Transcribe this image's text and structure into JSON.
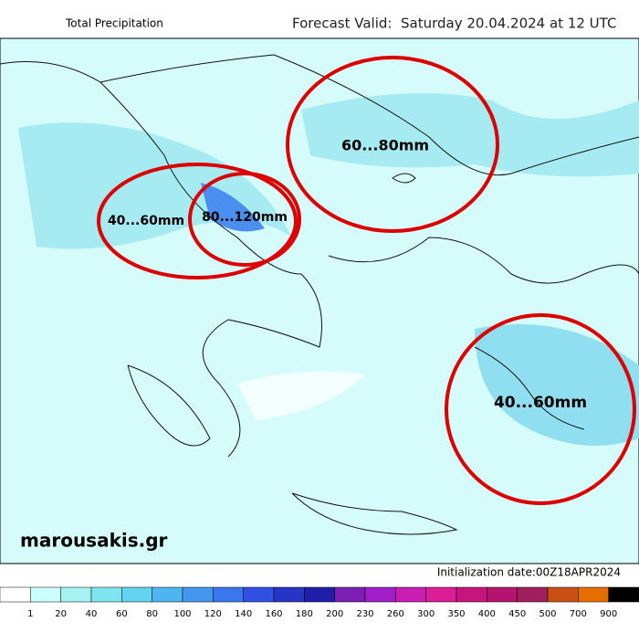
{
  "header": {
    "title": "Total Precipitation",
    "valid": "Forecast Valid:  Saturday 20.04.2024 at 12 UTC"
  },
  "annotations": [
    {
      "text": "60...80mm"
    },
    {
      "text": "40...60mm"
    },
    {
      "text": "80...120mm"
    },
    {
      "text": "40...60mm"
    }
  ],
  "watermark": "marousakis.gr",
  "init": "Initialization date:00Z18APR2024",
  "legend": {
    "colors": [
      "#ffffff",
      "#ccffff",
      "#a6f2f2",
      "#7fe5f0",
      "#62d3f0",
      "#4fb5ef",
      "#4496ef",
      "#3a76ee",
      "#3050e4",
      "#2834c8",
      "#1e1ea8",
      "#7b1eb4",
      "#a01ec8",
      "#c81eb4",
      "#dc1e96",
      "#c8147d",
      "#b4146e",
      "#a01e5a",
      "#c85014",
      "#e66e00",
      "#000000"
    ],
    "labels": [
      1,
      20,
      40,
      60,
      80,
      100,
      120,
      140,
      160,
      180,
      200,
      230,
      260,
      300,
      350,
      400,
      450,
      500,
      700,
      900
    ]
  }
}
